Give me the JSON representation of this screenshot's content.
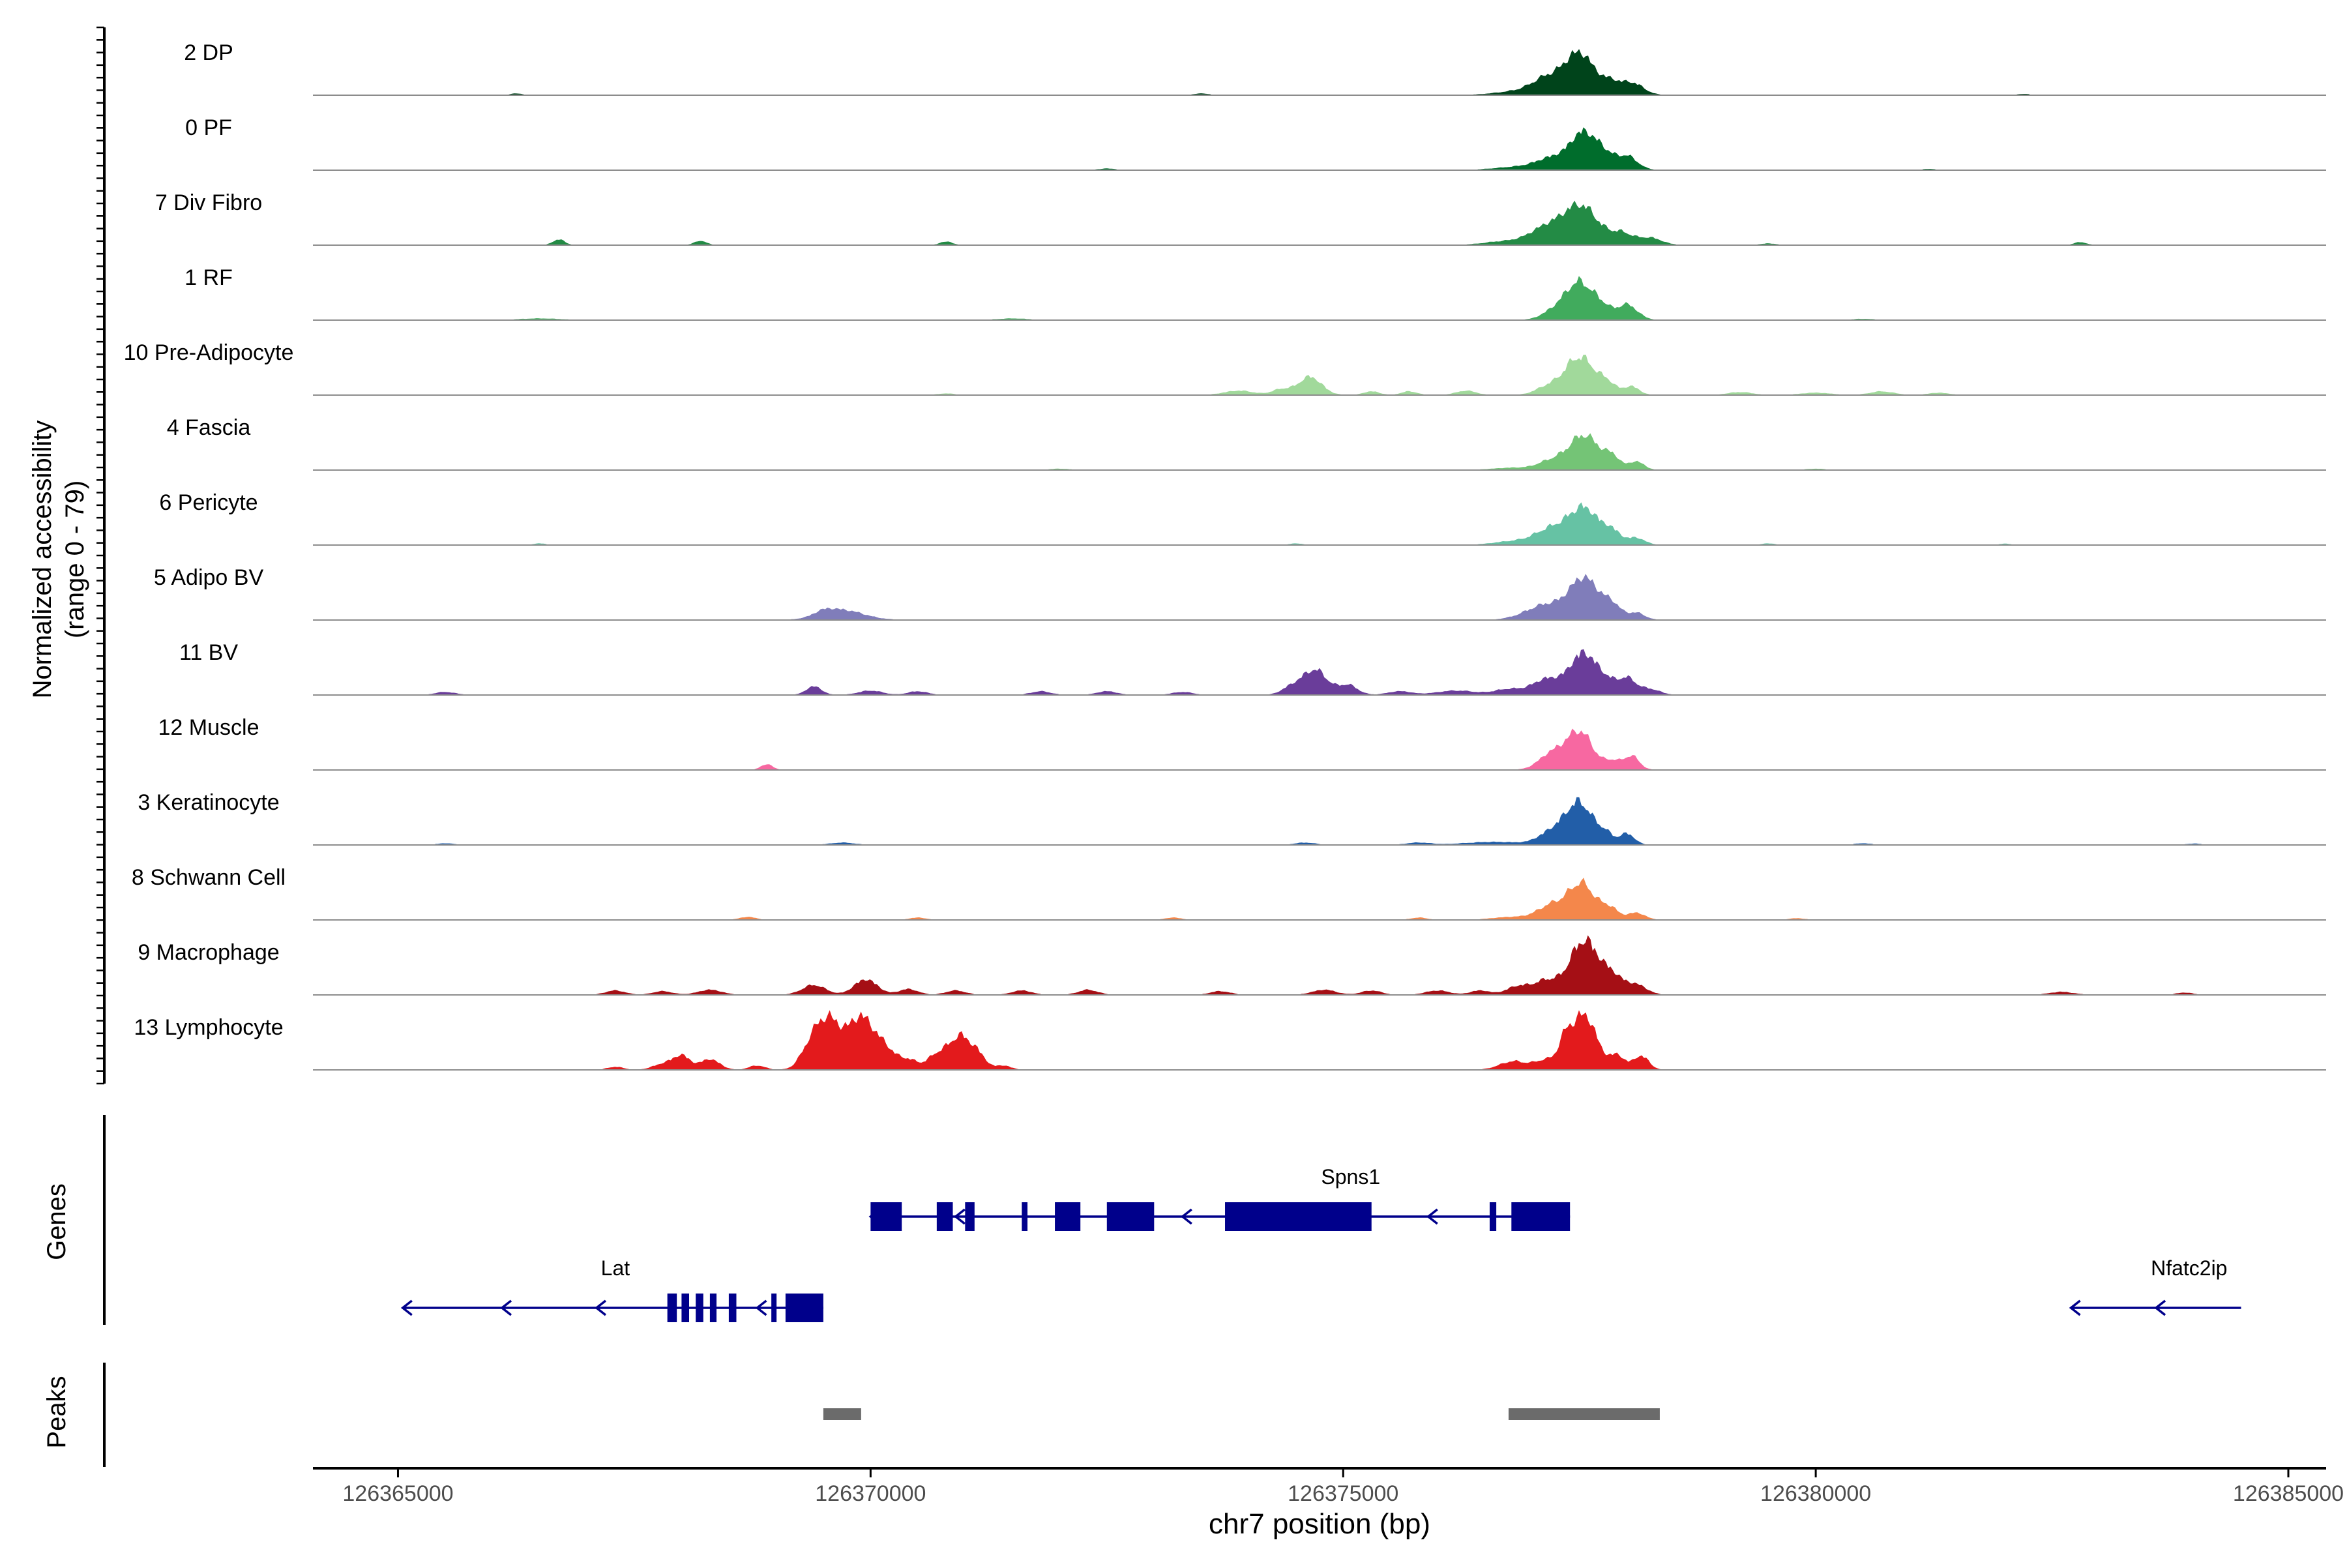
{
  "chart_data": {
    "type": "area",
    "title": "",
    "xlabel": "chr7 position (bp)",
    "ylabel_line1": "Normalized accessibility",
    "ylabel_line2": "(range 0 - 79)",
    "y_range": [
      0,
      79
    ],
    "xlim": [
      126364100,
      126385400
    ],
    "x_ticks": [
      126365000,
      126370000,
      126375000,
      126380000,
      126385000
    ],
    "x_tick_labels": [
      "126365000",
      "126370000",
      "126375000",
      "126380000",
      "126385000"
    ],
    "tracks": [
      {
        "name": "2 DP",
        "color": "#00441b",
        "peaks": [
          [
            126377500,
            60,
            160
          ],
          [
            126377150,
            20,
            150
          ],
          [
            126378050,
            18,
            120
          ],
          [
            126377830,
            14,
            90
          ],
          [
            126376900,
            6,
            250
          ],
          [
            126366250,
            2,
            60
          ],
          [
            126373500,
            2,
            80
          ],
          [
            126382200,
            1.5,
            60
          ]
        ]
      },
      {
        "name": "0 PF",
        "color": "#006d2c",
        "peaks": [
          [
            126377550,
            54,
            150
          ],
          [
            126377200,
            14,
            150
          ],
          [
            126378000,
            20,
            110
          ],
          [
            126377780,
            12,
            90
          ],
          [
            126376900,
            5,
            250
          ],
          [
            126372500,
            2,
            80
          ],
          [
            126381200,
            1.5,
            60
          ]
        ]
      },
      {
        "name": "7 Div Fibro",
        "color": "#238b45",
        "peaks": [
          [
            126377520,
            55,
            180
          ],
          [
            126377150,
            24,
            180
          ],
          [
            126377950,
            16,
            120
          ],
          [
            126378250,
            10,
            120
          ],
          [
            126376700,
            5,
            200
          ],
          [
            126366700,
            8,
            60
          ],
          [
            126368200,
            6,
            60
          ],
          [
            126370800,
            5,
            60
          ],
          [
            126382800,
            4,
            60
          ],
          [
            126379500,
            2,
            80
          ]
        ]
      },
      {
        "name": "1 RF",
        "color": "#41ab5d",
        "peaks": [
          [
            126377500,
            55,
            160
          ],
          [
            126378000,
            22,
            110
          ],
          [
            126377750,
            10,
            80
          ],
          [
            126377200,
            8,
            120
          ],
          [
            126366500,
            2,
            200
          ],
          [
            126371500,
            2,
            150
          ],
          [
            126380500,
            1.5,
            100
          ]
        ]
      },
      {
        "name": "10 Pre-Adipocyte",
        "color": "#a1d99b",
        "peaks": [
          [
            126377500,
            55,
            160
          ],
          [
            126377150,
            10,
            120
          ],
          [
            126377800,
            14,
            90
          ],
          [
            126378050,
            12,
            80
          ],
          [
            126374650,
            26,
            120
          ],
          [
            126374350,
            8,
            100
          ],
          [
            126373900,
            6,
            150
          ],
          [
            126375300,
            5,
            80
          ],
          [
            126375700,
            5,
            80
          ],
          [
            126376300,
            6,
            100
          ],
          [
            126379200,
            4,
            120
          ],
          [
            126380000,
            3,
            150
          ],
          [
            126380700,
            5,
            120
          ],
          [
            126381300,
            3,
            100
          ],
          [
            126370800,
            2,
            80
          ]
        ]
      },
      {
        "name": "4 Fascia",
        "color": "#74c476",
        "peaks": [
          [
            126377550,
            50,
            160
          ],
          [
            126377200,
            12,
            140
          ],
          [
            126377850,
            16,
            80
          ],
          [
            126378100,
            12,
            80
          ],
          [
            126376800,
            3,
            200
          ],
          [
            126372000,
            1.5,
            100
          ],
          [
            126380000,
            1.5,
            100
          ]
        ]
      },
      {
        "name": "6 Pericyte",
        "color": "#66c2a4",
        "peaks": [
          [
            126377550,
            52,
            160
          ],
          [
            126377200,
            22,
            170
          ],
          [
            126377850,
            16,
            90
          ],
          [
            126378100,
            10,
            90
          ],
          [
            126376800,
            5,
            200
          ],
          [
            126366500,
            2,
            60
          ],
          [
            126374500,
            2,
            60
          ],
          [
            126379500,
            2,
            60
          ],
          [
            126382000,
            1.5,
            60
          ]
        ]
      },
      {
        "name": "5 Adipo BV",
        "color": "#807dba",
        "peaks": [
          [
            126377550,
            60,
            160
          ],
          [
            126377150,
            20,
            170
          ],
          [
            126377850,
            18,
            90
          ],
          [
            126378100,
            10,
            90
          ],
          [
            126376900,
            4,
            150
          ],
          [
            126369700,
            14,
            220
          ],
          [
            126369500,
            6,
            100
          ]
        ]
      },
      {
        "name": "11 BV",
        "color": "#6a3d9a",
        "peaks": [
          [
            126377550,
            60,
            150
          ],
          [
            126377150,
            22,
            150
          ],
          [
            126378000,
            24,
            100
          ],
          [
            126377800,
            10,
            80
          ],
          [
            126378250,
            8,
            100
          ],
          [
            126374700,
            36,
            130
          ],
          [
            126374450,
            10,
            100
          ],
          [
            126375050,
            14,
            100
          ],
          [
            126369400,
            12,
            80
          ],
          [
            126370000,
            6,
            120
          ],
          [
            126370500,
            5,
            100
          ],
          [
            126365500,
            4,
            100
          ],
          [
            126371800,
            5,
            100
          ],
          [
            126372500,
            5,
            100
          ],
          [
            126373300,
            4,
            100
          ],
          [
            126375600,
            5,
            120
          ],
          [
            126376200,
            6,
            200
          ],
          [
            126376750,
            8,
            150
          ]
        ]
      },
      {
        "name": "12 Muscle",
        "color": "#f768a1",
        "peaks": [
          [
            126377500,
            55,
            140
          ],
          [
            126377200,
            22,
            130
          ],
          [
            126377850,
            12,
            80
          ],
          [
            126378050,
            20,
            80
          ],
          [
            126368900,
            8,
            60
          ]
        ]
      },
      {
        "name": "3 Keratinocyte",
        "color": "#225ea8",
        "peaks": [
          [
            126377500,
            60,
            150
          ],
          [
            126377200,
            16,
            140
          ],
          [
            126378000,
            16,
            80
          ],
          [
            126377780,
            12,
            70
          ],
          [
            126376600,
            4,
            300
          ],
          [
            126369700,
            3,
            120
          ],
          [
            126374600,
            3,
            100
          ],
          [
            126375800,
            3,
            120
          ],
          [
            126365500,
            2,
            80
          ],
          [
            126380500,
            2,
            80
          ],
          [
            126384000,
            1.5,
            80
          ]
        ]
      },
      {
        "name": "8 Schwann Cell",
        "color": "#f4874b",
        "peaks": [
          [
            126377520,
            52,
            140
          ],
          [
            126377200,
            20,
            140
          ],
          [
            126377820,
            16,
            90
          ],
          [
            126378100,
            10,
            90
          ],
          [
            126376800,
            4,
            200
          ],
          [
            126368700,
            4,
            80
          ],
          [
            126370500,
            3,
            80
          ],
          [
            126373200,
            3,
            80
          ],
          [
            126375800,
            3,
            80
          ],
          [
            126379800,
            2,
            80
          ]
        ]
      },
      {
        "name": "9 Macrophage",
        "color": "#a50f15",
        "peaks": [
          [
            126377550,
            78,
            150
          ],
          [
            126377150,
            20,
            130
          ],
          [
            126377850,
            24,
            110
          ],
          [
            126378100,
            14,
            110
          ],
          [
            126376850,
            12,
            120
          ],
          [
            126369400,
            14,
            120
          ],
          [
            126369950,
            22,
            120
          ],
          [
            126370400,
            8,
            100
          ],
          [
            126367300,
            6,
            100
          ],
          [
            126368300,
            7,
            120
          ],
          [
            126367800,
            5,
            100
          ],
          [
            126370900,
            6,
            100
          ],
          [
            126371600,
            6,
            100
          ],
          [
            126372300,
            7,
            100
          ],
          [
            126373700,
            5,
            100
          ],
          [
            126374800,
            7,
            120
          ],
          [
            126375300,
            6,
            100
          ],
          [
            126376000,
            6,
            120
          ],
          [
            126376450,
            6,
            100
          ],
          [
            126382600,
            4,
            120
          ],
          [
            126383900,
            3,
            80
          ]
        ]
      },
      {
        "name": "13 Lymphocyte",
        "color": "#e31a1c",
        "peaks": [
          [
            126377550,
            79,
            130
          ],
          [
            126377350,
            30,
            70
          ],
          [
            126377150,
            14,
            120
          ],
          [
            126376800,
            12,
            140
          ],
          [
            126377900,
            20,
            80
          ],
          [
            126378150,
            20,
            80
          ],
          [
            126369550,
            72,
            140
          ],
          [
            126369350,
            20,
            100
          ],
          [
            126369900,
            72,
            130
          ],
          [
            126370150,
            28,
            110
          ],
          [
            126370400,
            14,
            100
          ],
          [
            126370700,
            20,
            100
          ],
          [
            126370950,
            48,
            120
          ],
          [
            126371150,
            15,
            80
          ],
          [
            126371400,
            6,
            80
          ],
          [
            126368000,
            20,
            90
          ],
          [
            126368300,
            15,
            100
          ],
          [
            126367800,
            8,
            100
          ],
          [
            126368800,
            6,
            80
          ],
          [
            126367300,
            4,
            80
          ]
        ]
      }
    ],
    "genes_label": "Genes",
    "genes": [
      {
        "name": "Spns1",
        "start": 126370000,
        "end": 126377400,
        "strand": "-",
        "row": 0,
        "exons": [
          [
            126370000,
            126370330
          ],
          [
            126370700,
            126370870
          ],
          [
            126371000,
            126371100
          ],
          [
            126371600,
            126371660
          ],
          [
            126371950,
            126372220
          ],
          [
            126372500,
            126373000
          ],
          [
            126373750,
            126375300
          ],
          [
            126376550,
            126376620
          ],
          [
            126376780,
            126377400
          ]
        ],
        "arrows": [
          126370900,
          126373300,
          126375900
        ]
      },
      {
        "name": "Lat",
        "start": 126365050,
        "end": 126369500,
        "strand": "-",
        "row": 1,
        "exons": [
          [
            126367850,
            126367950
          ],
          [
            126368000,
            126368080
          ],
          [
            126368150,
            126368230
          ],
          [
            126368300,
            126368370
          ],
          [
            126368500,
            126368580
          ],
          [
            126368950,
            126369000
          ],
          [
            126369100,
            126369500
          ]
        ],
        "arrows": [
          126366100,
          126367100,
          126368800
        ]
      },
      {
        "name": "Nfatc2ip",
        "start": 126382700,
        "end": 126384500,
        "strand": "-",
        "row": 1,
        "exons": [],
        "arrows": [
          126383600
        ]
      }
    ],
    "peaks_label": "Peaks",
    "peak_regions": [
      [
        126369500,
        126369900
      ],
      [
        126376750,
        126378350
      ]
    ]
  }
}
